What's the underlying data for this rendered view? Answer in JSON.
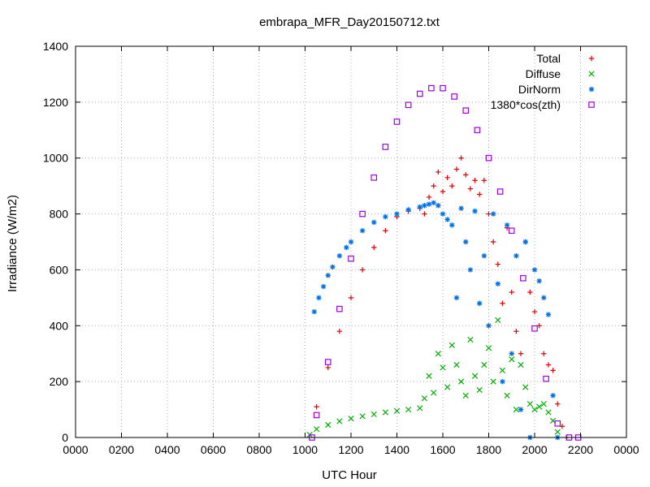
{
  "chart_data": {
    "type": "scatter",
    "title": "embrapa_MFR_Day20150712.txt",
    "xlabel": "UTC Hour",
    "ylabel": "Irradiance (W/m2)",
    "xlim": [
      0,
      24
    ],
    "ylim": [
      0,
      1400
    ],
    "x_ticks": [
      0,
      2,
      4,
      6,
      8,
      10,
      12,
      14,
      16,
      18,
      20,
      22,
      24
    ],
    "x_tick_labels": [
      "0000",
      "0200",
      "0400",
      "0600",
      "0800",
      "1000",
      "1200",
      "1400",
      "1600",
      "1800",
      "2000",
      "2200",
      "0000"
    ],
    "y_ticks": [
      0,
      200,
      400,
      600,
      800,
      1000,
      1200,
      1400
    ],
    "y_tick_labels": [
      "0",
      "200",
      "400",
      "600",
      "800",
      "1000",
      "1200",
      "1400"
    ],
    "grid": true,
    "legend_position": "top-right",
    "series": [
      {
        "name": "Total",
        "color": "#e00000",
        "marker": "plus",
        "x": [
          10.5,
          11.0,
          11.5,
          12.0,
          12.5,
          13.0,
          13.5,
          14.0,
          14.5,
          15.0,
          15.2,
          15.4,
          15.6,
          15.8,
          16.0,
          16.2,
          16.4,
          16.6,
          16.8,
          17.0,
          17.2,
          17.4,
          17.6,
          17.8,
          18.0,
          18.2,
          18.4,
          18.6,
          18.8,
          19.0,
          19.2,
          19.4,
          19.6,
          19.8,
          20.0,
          20.2,
          20.4,
          20.6,
          20.8,
          21.0,
          21.2,
          21.4
        ],
        "y": [
          110,
          250,
          380,
          500,
          600,
          680,
          740,
          790,
          810,
          820,
          800,
          860,
          900,
          950,
          880,
          930,
          900,
          960,
          1000,
          940,
          890,
          920,
          870,
          920,
          800,
          700,
          620,
          480,
          750,
          520,
          380,
          300,
          700,
          520,
          450,
          400,
          300,
          260,
          240,
          120,
          40,
          0
        ]
      },
      {
        "name": "Diffuse",
        "color": "#00b000",
        "marker": "cross",
        "x": [
          10.2,
          10.5,
          11.0,
          11.5,
          12.0,
          12.5,
          13.0,
          13.5,
          14.0,
          14.5,
          15.0,
          15.2,
          15.4,
          15.6,
          15.8,
          16.0,
          16.2,
          16.4,
          16.6,
          16.8,
          17.0,
          17.2,
          17.4,
          17.6,
          17.8,
          18.0,
          18.2,
          18.4,
          18.6,
          18.8,
          19.0,
          19.2,
          19.4,
          19.6,
          19.8,
          20.0,
          20.2,
          20.4,
          20.6,
          20.8,
          21.0
        ],
        "y": [
          10,
          30,
          45,
          58,
          68,
          76,
          83,
          90,
          95,
          100,
          105,
          140,
          220,
          160,
          300,
          250,
          180,
          330,
          260,
          200,
          150,
          350,
          220,
          170,
          260,
          320,
          200,
          420,
          240,
          150,
          280,
          100,
          260,
          180,
          120,
          100,
          110,
          120,
          90,
          60,
          20
        ]
      },
      {
        "name": "DirNorm",
        "color": "#0070e0",
        "marker": "star",
        "x": [
          10.4,
          10.6,
          10.8,
          11.0,
          11.2,
          11.5,
          11.8,
          12.0,
          12.5,
          13.0,
          13.5,
          14.0,
          14.5,
          15.0,
          15.2,
          15.4,
          15.6,
          15.8,
          16.0,
          16.2,
          16.4,
          16.6,
          16.8,
          17.0,
          17.2,
          17.4,
          17.6,
          17.8,
          18.0,
          18.2,
          18.4,
          18.6,
          18.8,
          19.0,
          19.2,
          19.4,
          19.6,
          19.8,
          20.0,
          20.2,
          20.4,
          20.6,
          20.8,
          21.0
        ],
        "y": [
          450,
          500,
          540,
          580,
          610,
          650,
          680,
          700,
          740,
          770,
          790,
          800,
          815,
          825,
          830,
          835,
          840,
          830,
          800,
          780,
          760,
          500,
          820,
          700,
          600,
          810,
          480,
          650,
          400,
          800,
          550,
          200,
          760,
          300,
          650,
          100,
          700,
          0,
          600,
          560,
          500,
          440,
          150,
          0
        ]
      },
      {
        "name": "1380*cos(zth)",
        "color": "#a000e0",
        "marker": "square",
        "x": [
          10.3,
          10.5,
          11.0,
          11.5,
          12.0,
          12.5,
          13.0,
          13.5,
          14.0,
          14.5,
          15.0,
          15.5,
          16.0,
          16.5,
          17.0,
          17.5,
          18.0,
          18.5,
          19.0,
          19.5,
          20.0,
          20.5,
          21.0,
          21.5,
          21.9
        ],
        "y": [
          0,
          80,
          270,
          460,
          640,
          800,
          930,
          1040,
          1130,
          1190,
          1230,
          1250,
          1250,
          1220,
          1170,
          1100,
          1000,
          880,
          740,
          570,
          390,
          210,
          50,
          0,
          0
        ]
      }
    ]
  }
}
